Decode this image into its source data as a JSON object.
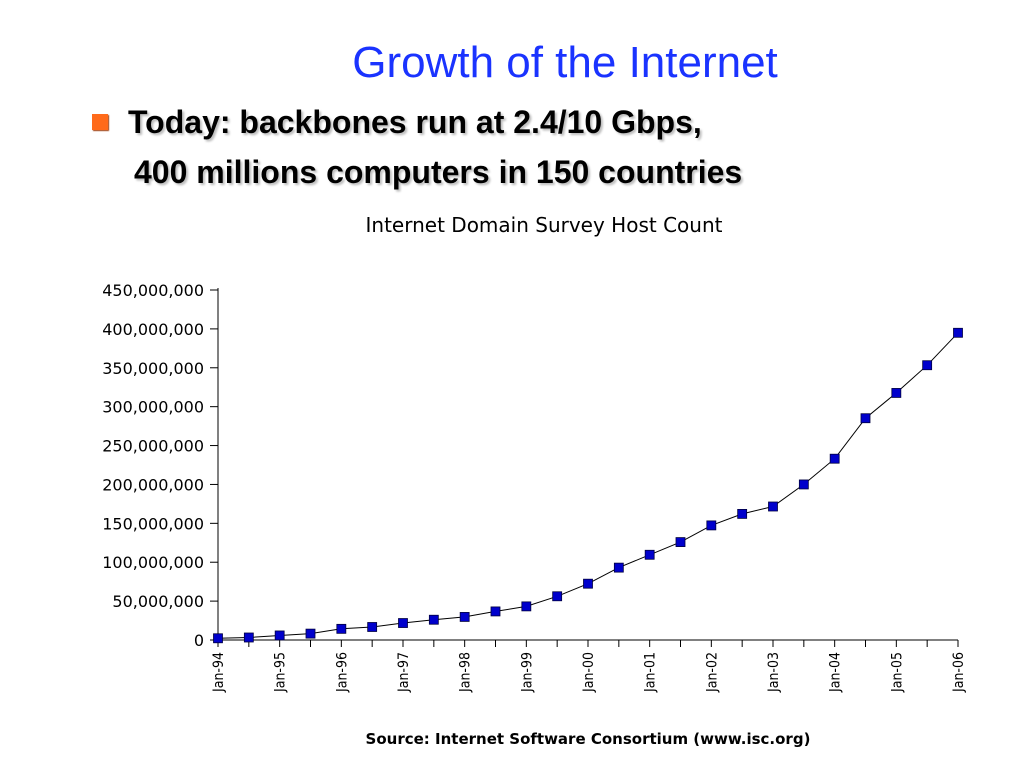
{
  "slide": {
    "title": "Growth of the Internet",
    "bullet_line_1": "Today: backbones run at 2.4/10 Gbps,",
    "bullet_line_2": "400 millions computers in 150 countries",
    "colors": {
      "title": "#1a33ff",
      "bullet": "#ff6a1a",
      "marker": "#0000cc"
    }
  },
  "chart_data": {
    "type": "line",
    "title": "Internet Domain Survey Host Count",
    "source": "Source: Internet Software Consortium (www.isc.org)",
    "x": [
      "Jan-94",
      "Jul-94",
      "Jan-95",
      "Jul-95",
      "Jan-96",
      "Jul-96",
      "Jan-97",
      "Jul-97",
      "Jan-98",
      "Jul-98",
      "Jan-99",
      "Jul-99",
      "Jan-00",
      "Jul-00",
      "Jan-01",
      "Jul-01",
      "Jan-02",
      "Jul-02",
      "Jan-03",
      "Jul-03",
      "Jan-04",
      "Jul-04",
      "Jan-05",
      "Jul-05",
      "Jan-06"
    ],
    "x_tick_labels": [
      "Jan-94",
      "Jan-95",
      "Jan-96",
      "Jan-97",
      "Jan-98",
      "Jan-99",
      "Jan-00",
      "Jan-01",
      "Jan-02",
      "Jan-03",
      "Jan-04",
      "Jan-05",
      "Jan-06"
    ],
    "values": [
      2217000,
      3212000,
      5846000,
      8200000,
      14352000,
      16729000,
      21819000,
      26053000,
      29670000,
      36739000,
      43230000,
      56218000,
      72398000,
      93047000,
      109574000,
      125888000,
      147345000,
      162128000,
      171638000,
      200000000,
      233101000,
      285139000,
      317646000,
      353284000,
      394991000
    ],
    "y_ticks": [
      "0",
      "50,000,000",
      "100,000,000",
      "150,000,000",
      "200,000,000",
      "250,000,000",
      "300,000,000",
      "350,000,000",
      "400,000,000",
      "450,000,000"
    ],
    "ylim": [
      0,
      450000000
    ],
    "grid": false,
    "legend": false
  }
}
